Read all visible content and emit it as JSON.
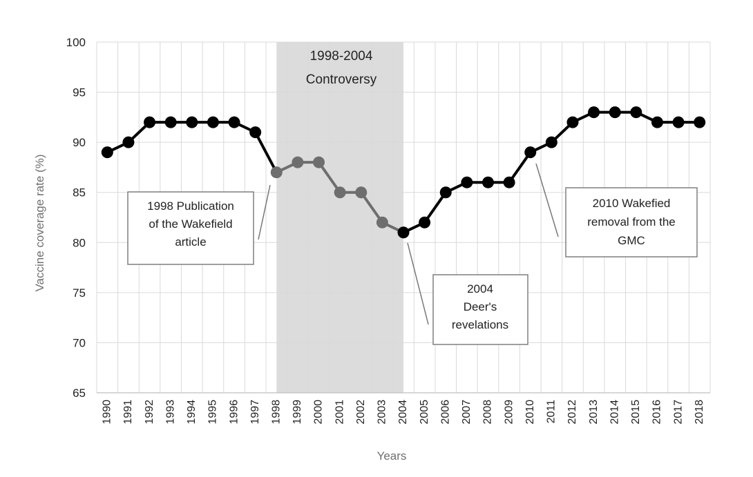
{
  "chart_data": {
    "type": "line",
    "title": "",
    "xlabel": "Years",
    "ylabel": "Vaccine coverage rate (%)",
    "ylim": [
      65,
      100
    ],
    "yticks": [
      65,
      70,
      75,
      80,
      85,
      90,
      95,
      100
    ],
    "x": [
      1990,
      1991,
      1992,
      1993,
      1994,
      1995,
      1996,
      1997,
      1998,
      1999,
      2000,
      2001,
      2002,
      2003,
      2004,
      2005,
      2006,
      2007,
      2008,
      2009,
      2010,
      2011,
      2012,
      2013,
      2014,
      2015,
      2016,
      2017,
      2018
    ],
    "x_labels": [
      "1990",
      "1991",
      "1992",
      "1993",
      "1994",
      "1995",
      "1996",
      "1997",
      "1998",
      "1999",
      "2000",
      "2001",
      "2002",
      "2003",
      "2004",
      "2005",
      "2006",
      "2007",
      "2008",
      "2009",
      "2010",
      "2011",
      "2012",
      "2013",
      "2014",
      "2015",
      "2016",
      "2017",
      "2018"
    ],
    "y": [
      89,
      90,
      92,
      92,
      92,
      92,
      92,
      91,
      87,
      88,
      88,
      85,
      85,
      82,
      81,
      82,
      85,
      86,
      86,
      86,
      89,
      90,
      92,
      93,
      93,
      93,
      92,
      92,
      92
    ],
    "grid": true,
    "series_colors": {
      "normal": "#000000",
      "controversy": "#6e6e6e"
    },
    "controversy_band": {
      "start": 1998,
      "end": 2004,
      "label_lines": [
        "1998-2004",
        "Controversy"
      ],
      "color": "#dcdcdc"
    },
    "annotations": [
      {
        "id": "wakefield-publication",
        "lines": [
          "1998 Publication",
          "of the Wakefield",
          "article"
        ]
      },
      {
        "id": "deer-revelations",
        "lines": [
          "2004",
          "Deer's",
          "revelations"
        ]
      },
      {
        "id": "wakefield-removal",
        "lines": [
          "2010 Wakefied",
          "removal from the",
          "GMC"
        ]
      }
    ]
  }
}
